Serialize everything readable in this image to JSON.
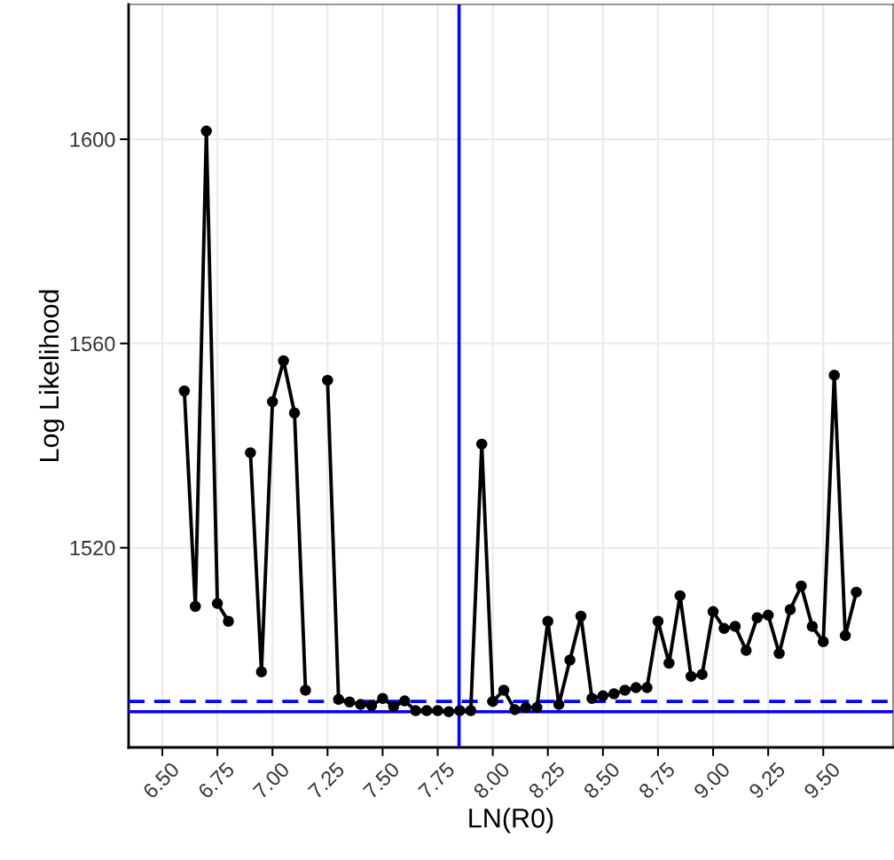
{
  "chart_data": {
    "type": "line",
    "xlabel": "LN(R0)",
    "ylabel": "Log Likelihood",
    "x": [
      6.6,
      6.65,
      6.7,
      6.75,
      6.8,
      6.85,
      6.9,
      6.95,
      7.0,
      7.05,
      7.1,
      7.15,
      7.2,
      7.25,
      7.3,
      7.35,
      7.4,
      7.45,
      7.5,
      7.55,
      7.6,
      7.65,
      7.7,
      7.75,
      7.8,
      7.85,
      7.9,
      7.95,
      8.0,
      8.05,
      8.1,
      8.15,
      8.2,
      8.25,
      8.3,
      8.35,
      8.4,
      8.45,
      8.5,
      8.55,
      8.6,
      8.65,
      8.7,
      8.75,
      8.8,
      8.85,
      8.9,
      8.95,
      9.0,
      9.05,
      9.1,
      9.15,
      9.2,
      9.25,
      9.3,
      9.35,
      9.4,
      9.45,
      9.5,
      9.55,
      9.6,
      9.65
    ],
    "series": [
      {
        "color": "#000000",
        "values": [
          1550.7,
          1508.5,
          1601.6,
          1509.1,
          1505.6,
          null,
          1538.6,
          1495.7,
          1548.6,
          1556.6,
          1546.4,
          1492.1,
          null,
          1552.8,
          1490.3,
          1489.8,
          1489.3,
          1489.1,
          1490.5,
          1488.9,
          1490.0,
          1488.1,
          1488.1,
          1488.1,
          1487.9,
          1488.1,
          1488.1,
          1540.3,
          1489.9,
          1492.1,
          1488.3,
          1488.7,
          1488.7,
          1505.6,
          1489.3,
          1498.0,
          1506.6,
          1490.5,
          1491.0,
          1491.4,
          1492.1,
          1492.6,
          1492.6,
          1505.6,
          1497.4,
          1510.6,
          1494.8,
          1495.2,
          1507.5,
          1504.2,
          1504.6,
          1499.9,
          1506.3,
          1506.8,
          1499.3,
          1507.9,
          1512.5,
          1504.6,
          1501.6,
          1553.8,
          1502.8,
          1511.3
        ]
      }
    ],
    "marker": "circle",
    "line_style": "solid",
    "grid": true,
    "xlim": [
      6.347,
      9.817
    ],
    "ylim": [
      1480.9,
      1626.4
    ],
    "xticks": [
      {
        "value": 6.5,
        "label": "6.50"
      },
      {
        "value": 6.75,
        "label": "6.75"
      },
      {
        "value": 7.0,
        "label": "7.00"
      },
      {
        "value": 7.25,
        "label": "7.25"
      },
      {
        "value": 7.5,
        "label": "7.50"
      },
      {
        "value": 7.75,
        "label": "7.75"
      },
      {
        "value": 8.0,
        "label": "8.00"
      },
      {
        "value": 8.25,
        "label": "8.25"
      },
      {
        "value": 8.5,
        "label": "8.50"
      },
      {
        "value": 8.75,
        "label": "8.75"
      },
      {
        "value": 9.0,
        "label": "9.00"
      },
      {
        "value": 9.25,
        "label": "9.25"
      },
      {
        "value": 9.5,
        "label": "9.50"
      }
    ],
    "yticks": [
      1520,
      1560,
      1600
    ],
    "ref_lines": [
      {
        "axis": "x",
        "value": 7.847,
        "color": "#0000ff",
        "line_style": "solid"
      },
      {
        "axis": "y",
        "value": 1487.9,
        "color": "#0000ff",
        "line_style": "solid"
      },
      {
        "axis": "y",
        "value": 1489.9,
        "color": "#0000ff",
        "line_style": "dashed"
      }
    ]
  }
}
